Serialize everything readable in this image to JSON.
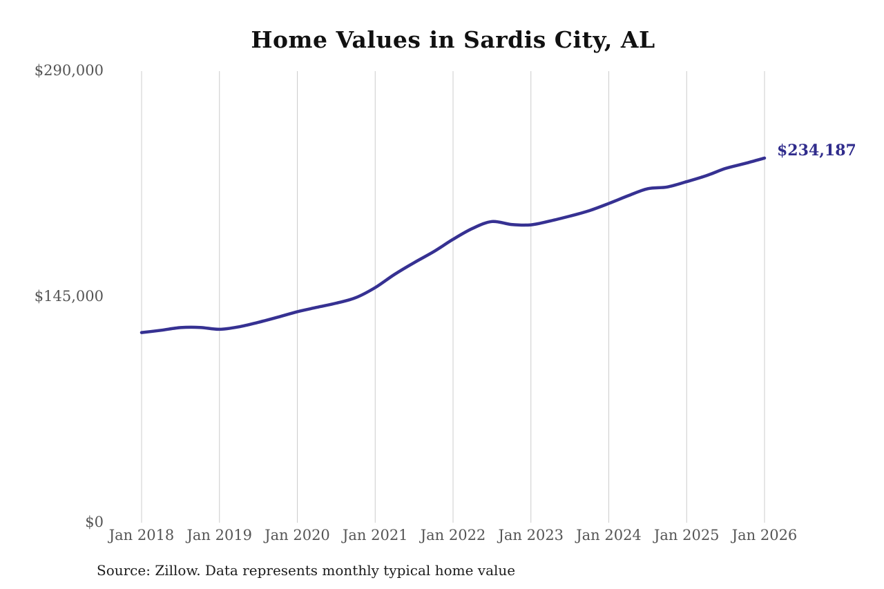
{
  "colors": {
    "background": "#ffffff",
    "line": "#363192",
    "end_label": "#302c8c",
    "gridline": "#cccccc",
    "axis_text": "#555555",
    "title_text": "#111111",
    "source_text": "#1c1c1c"
  },
  "chart_data": {
    "type": "line",
    "title": "Home Values in Sardis City, AL",
    "series": [
      {
        "name": "Monthly typical home value",
        "color": "#363192",
        "x": [
          "Jan 2018",
          "Apr 2018",
          "Jul 2018",
          "Oct 2018",
          "Jan 2019",
          "Apr 2019",
          "Jul 2019",
          "Oct 2019",
          "Jan 2020",
          "Apr 2020",
          "Jul 2020",
          "Oct 2020",
          "Jan 2021",
          "Apr 2021",
          "Jul 2021",
          "Oct 2021",
          "Jan 2022",
          "Apr 2022",
          "Jul 2022",
          "Oct 2022",
          "Jan 2023",
          "Apr 2023",
          "Jul 2023",
          "Oct 2023",
          "Jan 2024",
          "Apr 2024",
          "Jul 2024",
          "Oct 2024",
          "Jan 2025",
          "Apr 2025",
          "Jul 2025",
          "Oct 2025",
          "Jan 2026"
        ],
        "values": [
          122100,
          123600,
          125300,
          125400,
          124200,
          125800,
          128700,
          132000,
          135500,
          138300,
          141000,
          144500,
          151000,
          159500,
          167000,
          174000,
          182000,
          189000,
          193400,
          191500,
          191300,
          193800,
          196900,
          200400,
          205000,
          210000,
          214500,
          215600,
          219000,
          222800,
          227500,
          230700,
          234187
        ]
      }
    ],
    "x_tick_labels": [
      "Jan 2018",
      "Jan 2019",
      "Jan 2020",
      "Jan 2021",
      "Jan 2022",
      "Jan 2023",
      "Jan 2024",
      "Jan 2025",
      "Jan 2026"
    ],
    "y_ticks": [
      {
        "label": "$0",
        "value": 0
      },
      {
        "label": "$145,000",
        "value": 145000
      },
      {
        "label": "$290,000",
        "value": 290000
      }
    ],
    "ylim": [
      0,
      290000
    ],
    "grid": "vertical-only",
    "legend": "none",
    "end_annotation": {
      "text": "$234,187",
      "value": 234187
    },
    "source": "Source: Zillow. Data represents monthly typical home value"
  }
}
